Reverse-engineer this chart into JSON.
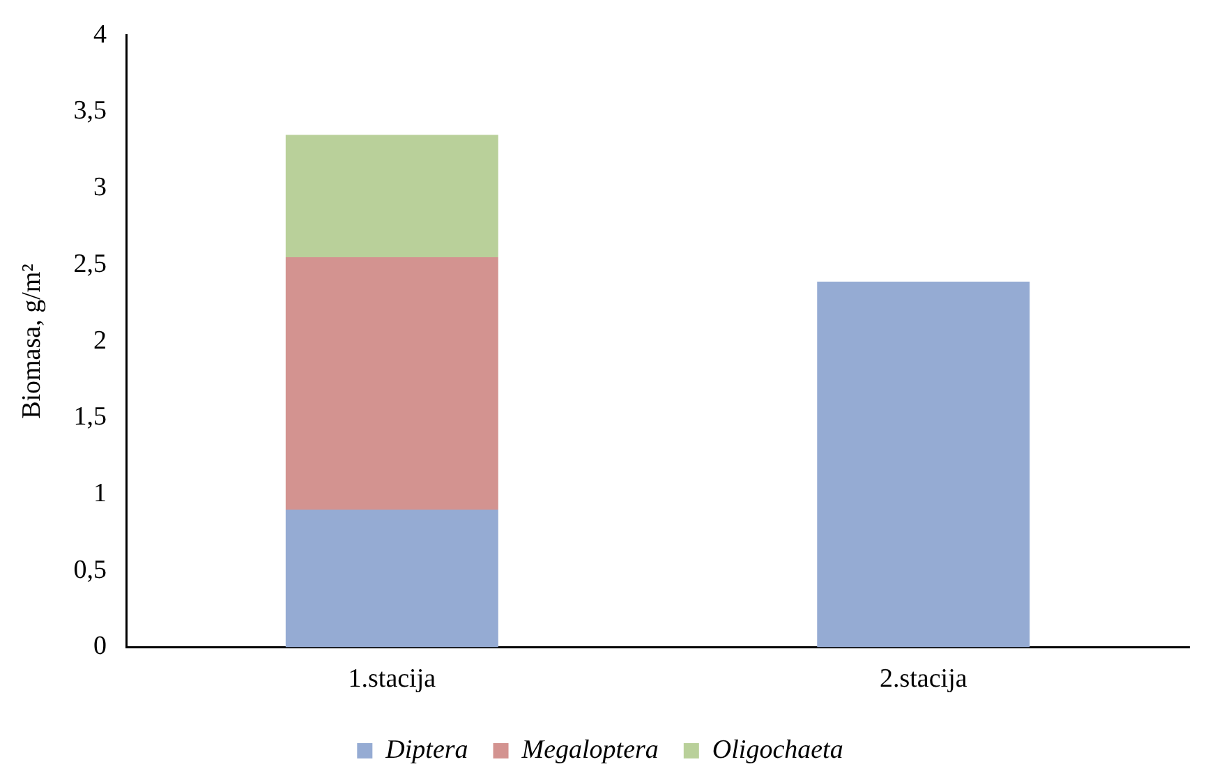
{
  "chart_data": {
    "type": "bar",
    "stacked": true,
    "ylabel": "Biomasa, g/m²",
    "categories": [
      "1.stacija",
      "2.stacija"
    ],
    "series": [
      {
        "name": "Diptera",
        "color": "#95abd3",
        "values": [
          0.9,
          2.39
        ]
      },
      {
        "name": "Megaloptera",
        "color": "#d39390",
        "values": [
          1.65,
          null
        ]
      },
      {
        "name": "Oligochaeta",
        "color": "#b9d09a",
        "values": [
          0.8,
          null
        ]
      }
    ],
    "ylim": [
      0,
      4
    ],
    "yticks": [
      0,
      {
        "value": 0.5,
        "label": "0,5"
      },
      1,
      {
        "value": 1.5,
        "label": "1,5"
      },
      2,
      {
        "value": 2.5,
        "label": "2,5"
      },
      3,
      {
        "value": 3.5,
        "label": "3,5"
      },
      4
    ],
    "grid": false,
    "legend": "bottom"
  }
}
